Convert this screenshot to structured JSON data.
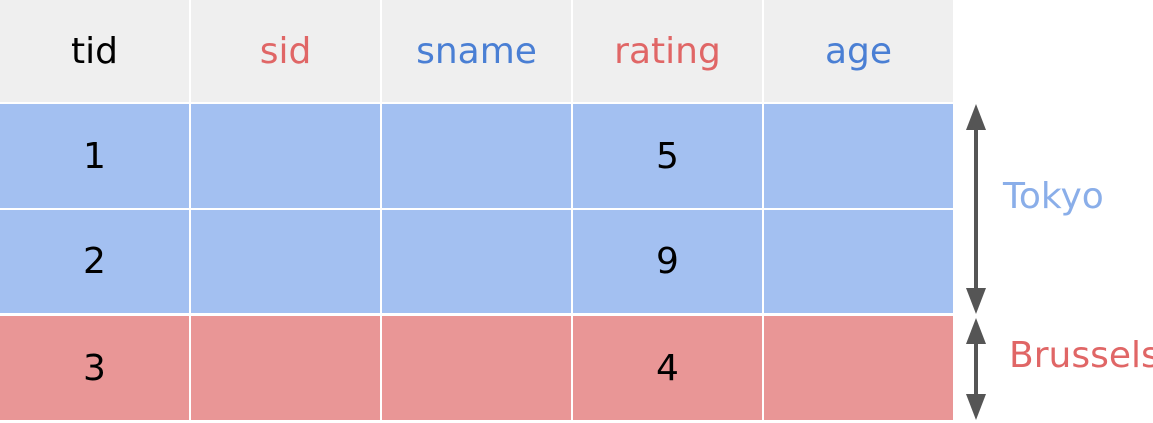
{
  "table": {
    "headers": [
      "tid",
      "sid",
      "sname",
      "rating",
      "age"
    ],
    "rows": [
      {
        "tid": "1",
        "sid": "",
        "sname": "",
        "rating": "5",
        "age": "",
        "group": "Tokyo"
      },
      {
        "tid": "2",
        "sid": "",
        "sname": "",
        "rating": "9",
        "age": "",
        "group": "Tokyo"
      },
      {
        "tid": "3",
        "sid": "",
        "sname": "",
        "rating": "4",
        "age": "",
        "group": "Brussels"
      }
    ]
  },
  "partitions": {
    "tokyo_label": "Tokyo",
    "brussels_label": "Brussels"
  },
  "colors": {
    "header_bg": "#efefef",
    "tokyo_bg": "#a3c0f1",
    "brussels_bg": "#e99696",
    "red_text": "#e06666",
    "blue_text": "#4a7fd4",
    "tokyo_label": "#8aaee9",
    "arrow": "#555555"
  }
}
